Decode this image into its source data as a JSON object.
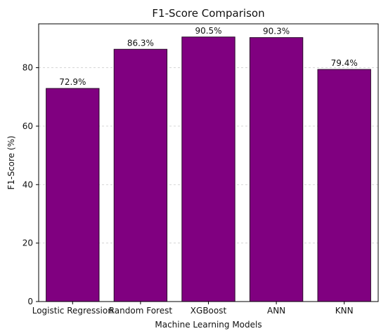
{
  "chart_data": {
    "type": "bar",
    "title": "F1-Score Comparison",
    "xlabel": "Machine Learning Models",
    "ylabel": "F1-Score (%)",
    "categories": [
      "Logistic Regression",
      "Random Forest",
      "XGBoost",
      "ANN",
      "KNN"
    ],
    "values": [
      72.9,
      86.3,
      90.5,
      90.3,
      79.4
    ],
    "data_labels": [
      "72.9%",
      "86.3%",
      "90.5%",
      "90.3%",
      "79.4%"
    ],
    "y_ticks": [
      0,
      20,
      40,
      60,
      80
    ],
    "ylim": [
      0,
      95
    ],
    "grid": "y-dashed",
    "bar_color": "#800080"
  }
}
